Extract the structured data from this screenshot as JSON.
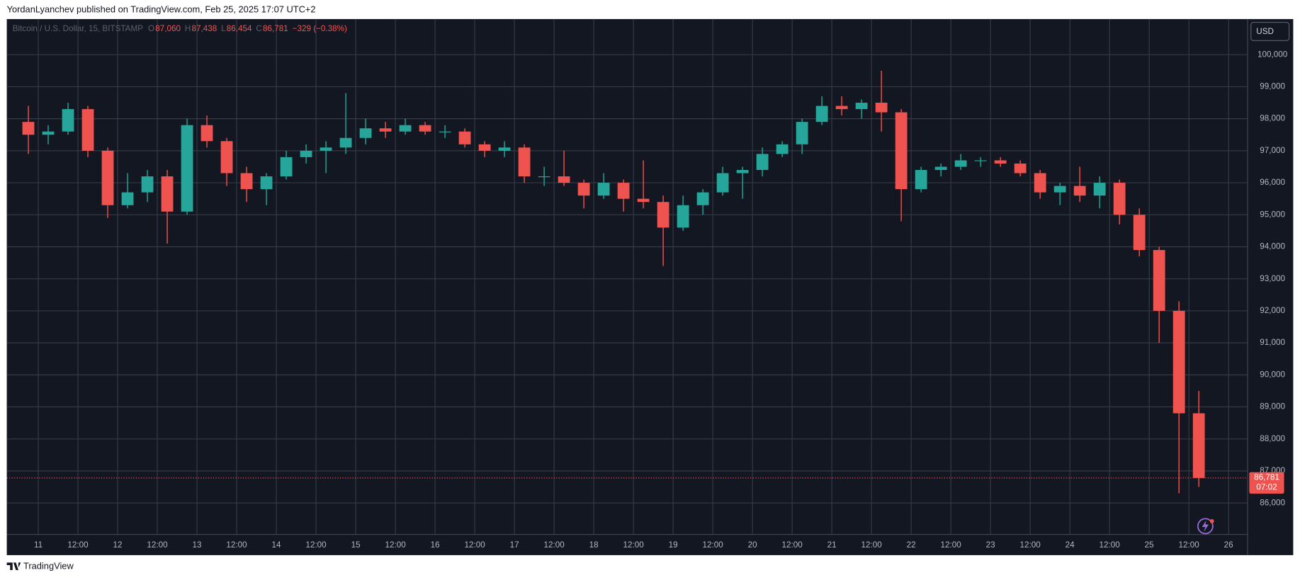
{
  "chart_data": {
    "type": "candlestick",
    "header": "YordanLyanchev published on TradingView.com, Feb 25, 2025 17:07 UTC+2",
    "symbol": "Bitcoin / U.S. Dollar, 15, BITSTAMP",
    "ohlc": [
      {
        "label": "O",
        "value": "87,060"
      },
      {
        "label": "H",
        "value": "87,438"
      },
      {
        "label": "L",
        "value": "86,454"
      },
      {
        "label": "C",
        "value": "86,781"
      }
    ],
    "change": "−329 (−0.38%)",
    "currency": "USD",
    "last_price": 86781,
    "last_price_label": "86,781",
    "countdown": "07:02",
    "footer": "TradingView",
    "up_color": "#26a69a",
    "down_color": "#ef5350",
    "grid": true,
    "x": [
      10.75,
      11,
      11.25,
      11.5,
      11.75,
      12,
      12.25,
      12.5,
      12.75,
      13,
      13.25,
      13.5,
      13.75,
      14,
      14.25,
      14.5,
      14.75,
      15,
      15.25,
      15.5,
      15.75,
      16,
      16.25,
      16.5,
      16.75,
      17,
      17.25,
      17.5,
      17.75,
      18,
      18.25,
      18.5,
      18.75,
      19,
      19.25,
      19.5,
      19.75,
      20,
      20.25,
      20.5,
      20.75,
      21,
      21.25,
      21.5,
      21.75,
      22,
      22.25,
      22.5,
      22.75,
      23,
      23.25,
      23.5,
      23.75,
      24,
      24.25,
      24.5,
      24.75,
      25,
      25.25,
      25.5
    ],
    "open": [
      97900,
      97500,
      97600,
      98300,
      97000,
      95300,
      95700,
      96200,
      95100,
      97800,
      97300,
      96300,
      95800,
      96200,
      96800,
      97000,
      97100,
      97400,
      97700,
      97600,
      97800,
      97600,
      97600,
      97200,
      97000,
      97100,
      96200,
      96200,
      96000,
      95600,
      96000,
      95500,
      95400,
      94600,
      95300,
      95700,
      96300,
      96400,
      96900,
      97200,
      97900,
      98400,
      98300,
      98500,
      98200,
      95800,
      96400,
      96500,
      96700,
      96700,
      96600,
      96300,
      95700,
      95900,
      95600,
      96000,
      95000,
      93900,
      92000,
      88800
    ],
    "high": [
      98400,
      97800,
      98500,
      98400,
      97100,
      96300,
      96400,
      96400,
      98000,
      98100,
      97400,
      96500,
      96300,
      97000,
      97200,
      97300,
      98800,
      98000,
      97900,
      98000,
      97900,
      97800,
      97700,
      97300,
      97300,
      97200,
      96500,
      97000,
      96100,
      96300,
      96100,
      96700,
      95600,
      95600,
      95800,
      96500,
      96500,
      97100,
      97300,
      98000,
      98700,
      98700,
      98600,
      99500,
      98300,
      96500,
      96600,
      96900,
      96800,
      96800,
      96700,
      96400,
      96000,
      96500,
      96200,
      96100,
      95200,
      94000,
      92300,
      89500
    ],
    "low": [
      96900,
      97200,
      97500,
      96800,
      94900,
      95200,
      95400,
      94100,
      95000,
      97100,
      95900,
      95400,
      95300,
      96100,
      96600,
      96300,
      96900,
      97200,
      97400,
      97500,
      97500,
      97400,
      97100,
      96800,
      96800,
      96000,
      95900,
      95900,
      95200,
      95500,
      95100,
      95200,
      93400,
      94500,
      95000,
      95600,
      95500,
      96200,
      96800,
      96900,
      97800,
      98100,
      98000,
      97600,
      94800,
      95700,
      96200,
      96400,
      96500,
      96500,
      96200,
      95500,
      95300,
      95400,
      95200,
      94700,
      93700,
      91000,
      86300,
      86500
    ],
    "close": [
      97500,
      97600,
      98300,
      97000,
      95300,
      95700,
      96200,
      95100,
      97800,
      97300,
      96300,
      95800,
      96200,
      96800,
      97000,
      97100,
      97400,
      97700,
      97600,
      97800,
      97600,
      97600,
      97200,
      97000,
      97100,
      96200,
      96200,
      96000,
      95600,
      96000,
      95500,
      95400,
      94600,
      95300,
      95700,
      96300,
      96400,
      96900,
      97200,
      97900,
      98400,
      98300,
      98500,
      98200,
      95800,
      96400,
      96500,
      96700,
      96700,
      96600,
      96300,
      95700,
      95900,
      95600,
      96000,
      95000,
      93900,
      92000,
      88800,
      86781
    ],
    "xlim": [
      10.624,
      26.24
    ],
    "ylim": [
      85017,
      101061
    ],
    "xticks": [
      11,
      {
        "value": 11.5,
        "label": "12:00"
      },
      12,
      {
        "value": 12.5,
        "label": "12:00"
      },
      13,
      {
        "value": 13.5,
        "label": "12:00"
      },
      14,
      {
        "value": 14.5,
        "label": "12:00"
      },
      15,
      {
        "value": 15.5,
        "label": "12:00"
      },
      16,
      {
        "value": 16.5,
        "label": "12:00"
      },
      17,
      {
        "value": 17.5,
        "label": "12:00"
      },
      18,
      {
        "value": 18.5,
        "label": "12:00"
      },
      19,
      {
        "value": 19.5,
        "label": "12:00"
      },
      20,
      {
        "value": 20.5,
        "label": "12:00"
      },
      21,
      {
        "value": 21.5,
        "label": "12:00"
      },
      22,
      {
        "value": 22.5,
        "label": "12:00"
      },
      23,
      {
        "value": 23.5,
        "label": "12:00"
      },
      24,
      {
        "value": 24.5,
        "label": "12:00"
      },
      25,
      {
        "value": 25.5,
        "label": "12:00"
      },
      26
    ],
    "yticks": [
      {
        "value": 86000,
        "label": "86,000"
      },
      {
        "value": 87000,
        "label": "87,000"
      },
      {
        "value": 88000,
        "label": "88,000"
      },
      {
        "value": 89000,
        "label": "89,000"
      },
      {
        "value": 90000,
        "label": "90,000"
      },
      {
        "value": 91000,
        "label": "91,000"
      },
      {
        "value": 92000,
        "label": "92,000"
      },
      {
        "value": 93000,
        "label": "93,000"
      },
      {
        "value": 94000,
        "label": "94,000"
      },
      {
        "value": 95000,
        "label": "95,000"
      },
      {
        "value": 96000,
        "label": "96,000"
      },
      {
        "value": 97000,
        "label": "97,000"
      },
      {
        "value": 98000,
        "label": "98,000"
      },
      {
        "value": 99000,
        "label": "99,000"
      },
      {
        "value": 100000,
        "label": "100,000"
      }
    ]
  }
}
